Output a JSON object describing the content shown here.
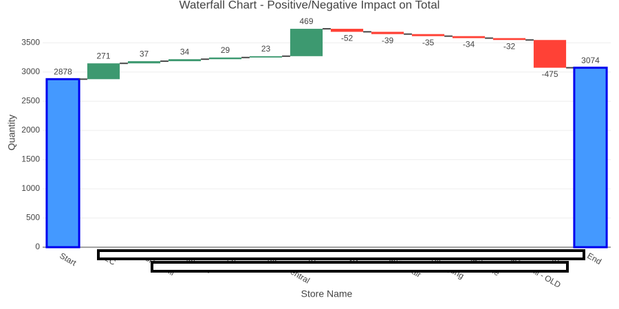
{
  "chart_data": {
    "type": "waterfall",
    "title": "Waterfall Chart - Positive/Negative Impact on Total",
    "x_label": "Store Name",
    "y_label": "Quantity",
    "categories": [
      "Start",
      "B2C",
      "Forest Hill",
      "Burwood",
      "Bendigo",
      "Cairns Central",
      "Other",
      "Ryde",
      "Pacific Fair",
      "Wollongong",
      "Gladstone",
      "Forest Hill - OLD",
      "Other",
      "End"
    ],
    "measures": [
      "absolute",
      "relative",
      "relative",
      "relative",
      "relative",
      "relative",
      "relative",
      "relative",
      "relative",
      "relative",
      "relative",
      "relative",
      "relative",
      "total"
    ],
    "values": [
      2878,
      271,
      37,
      34,
      29,
      23,
      469,
      -52,
      -39,
      -35,
      -34,
      -32,
      -475,
      3074
    ],
    "increasing_color": "#3d9970",
    "decreasing_color": "#ff4136",
    "total_color": "#4499ff",
    "total_outline": "#0000ee",
    "connector_color": "#444444",
    "ylim": [
      0,
      3940
    ],
    "yticks": [
      0,
      500,
      1000,
      1500,
      2000,
      2500,
      3000,
      3500
    ],
    "grid": true
  }
}
